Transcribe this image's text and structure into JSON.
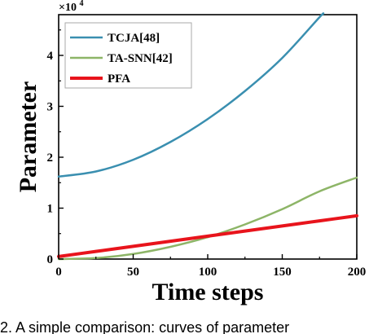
{
  "chart_data": {
    "type": "line",
    "title": "",
    "xlabel": "Time steps",
    "ylabel": "Parameter",
    "y_multiplier": "×10",
    "y_multiplier_exp": "4",
    "xlim": [
      0,
      200
    ],
    "ylim": [
      0,
      4.8
    ],
    "x_ticks": [
      "0",
      "50",
      "100",
      "150",
      "200"
    ],
    "y_ticks": [
      "0",
      "1",
      "2",
      "3",
      "4"
    ],
    "grid": false,
    "legend_position": "top-left",
    "x": [
      0,
      25,
      50,
      75,
      100,
      125,
      150,
      175
    ],
    "series": [
      {
        "name": "TCJA[48]",
        "color": "#3a8fb0",
        "values": [
          1.62,
          1.72,
          1.95,
          2.3,
          2.75,
          3.3,
          3.95,
          4.75
        ]
      },
      {
        "name": "TA-SNN[42]",
        "color": "#8db567",
        "values": [
          0,
          0.02,
          0.1,
          0.24,
          0.43,
          0.68,
          0.98,
          1.33
        ]
      },
      {
        "name": "PFA",
        "color": "#e8141c",
        "values": [
          0.05,
          0.15,
          0.25,
          0.35,
          0.45,
          0.55,
          0.65,
          0.75
        ]
      }
    ],
    "series_end": [
      {
        "x": 177,
        "value": 4.8
      },
      {
        "x": 200,
        "value": 1.6
      },
      {
        "x": 200,
        "value": 0.85
      }
    ]
  },
  "caption": {
    "text": "2. A simple comparison: curves of parameter"
  }
}
